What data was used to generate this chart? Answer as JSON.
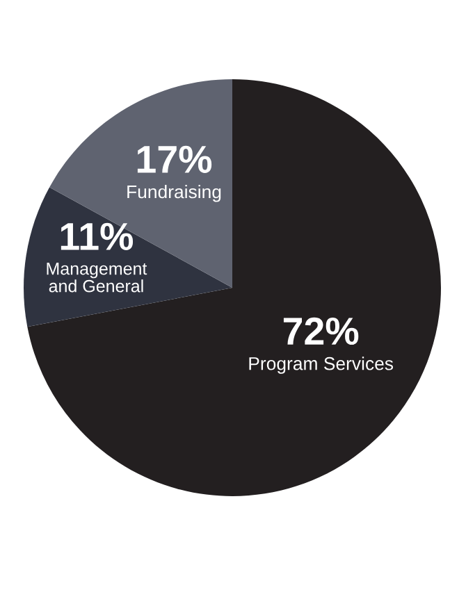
{
  "chart_data": {
    "type": "pie",
    "categories": [
      "Program Services",
      "Management and General",
      "Fundraising"
    ],
    "values": [
      72,
      11,
      17
    ],
    "colors": [
      "#231f20",
      "#2f3340",
      "#5f6370"
    ],
    "value_labels": [
      "72%",
      "11%",
      "17%"
    ]
  }
}
